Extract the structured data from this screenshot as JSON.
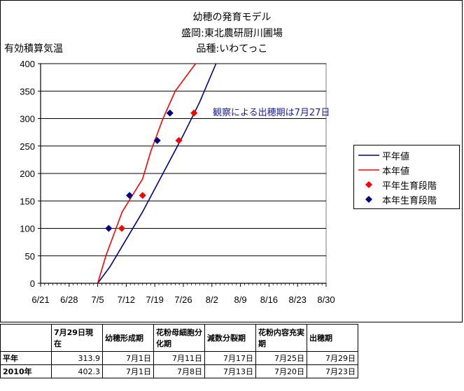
{
  "chart_data": {
    "type": "line",
    "title_lines": [
      "幼穂の発育モデル",
      "盛岡:東北農研厨川圃場",
      "品種:いわてっこ"
    ],
    "ylabel": "有効積算気温",
    "ylim": [
      0,
      400
    ],
    "yticks": [
      "0",
      "50",
      "100",
      "150",
      "200",
      "250",
      "300",
      "350",
      "400"
    ],
    "xticks": [
      "6/21",
      "6/28",
      "7/5",
      "7/12",
      "7/19",
      "7/26",
      "8/2",
      "8/9",
      "8/16",
      "8/23",
      "8/30"
    ],
    "xlim_days": [
      0,
      70
    ],
    "series": [
      {
        "name": "平年値",
        "color": "#000080",
        "kind": "line",
        "points": [
          [
            14,
            0
          ],
          [
            17,
            30
          ],
          [
            21,
            80
          ],
          [
            25,
            130
          ],
          [
            30,
            200
          ],
          [
            35,
            270
          ],
          [
            39,
            330
          ],
          [
            43,
            400
          ]
        ]
      },
      {
        "name": "本年値",
        "color": "#ff0000",
        "kind": "line",
        "points": [
          [
            14,
            0
          ],
          [
            16,
            50
          ],
          [
            18,
            90
          ],
          [
            20,
            130
          ],
          [
            25,
            190
          ],
          [
            27,
            240
          ],
          [
            30,
            300
          ],
          [
            33,
            350
          ],
          [
            38,
            400
          ]
        ]
      },
      {
        "name": "平年生育段階",
        "color": "#ff0000",
        "kind": "marker",
        "points": [
          [
            19.9,
            100
          ],
          [
            25,
            160
          ],
          [
            33.9,
            260
          ],
          [
            37.6,
            310
          ]
        ]
      },
      {
        "name": "本年生育段階",
        "color": "#000080",
        "kind": "marker",
        "points": [
          [
            16.7,
            100
          ],
          [
            21.8,
            160
          ],
          [
            28.6,
            260
          ],
          [
            31.7,
            310
          ]
        ]
      }
    ],
    "annotation": "観察による出穂期は7月27日",
    "grid": "horizontal",
    "legend_position": "right"
  },
  "table": {
    "header": [
      "",
      "7月29日現在",
      "幼穂形成期",
      "花粉母細胞分化期",
      "減数分裂期",
      "花粉内容充実期",
      "出穂期"
    ],
    "rows": [
      [
        "平年",
        "313.9",
        "7月1日",
        "7月11日",
        "7月17日",
        "7月25日",
        "7月29日"
      ],
      [
        "2010年",
        "402.3",
        "7月1日",
        "7月8日",
        "7月13日",
        "7月20日",
        "7月23日"
      ]
    ]
  }
}
